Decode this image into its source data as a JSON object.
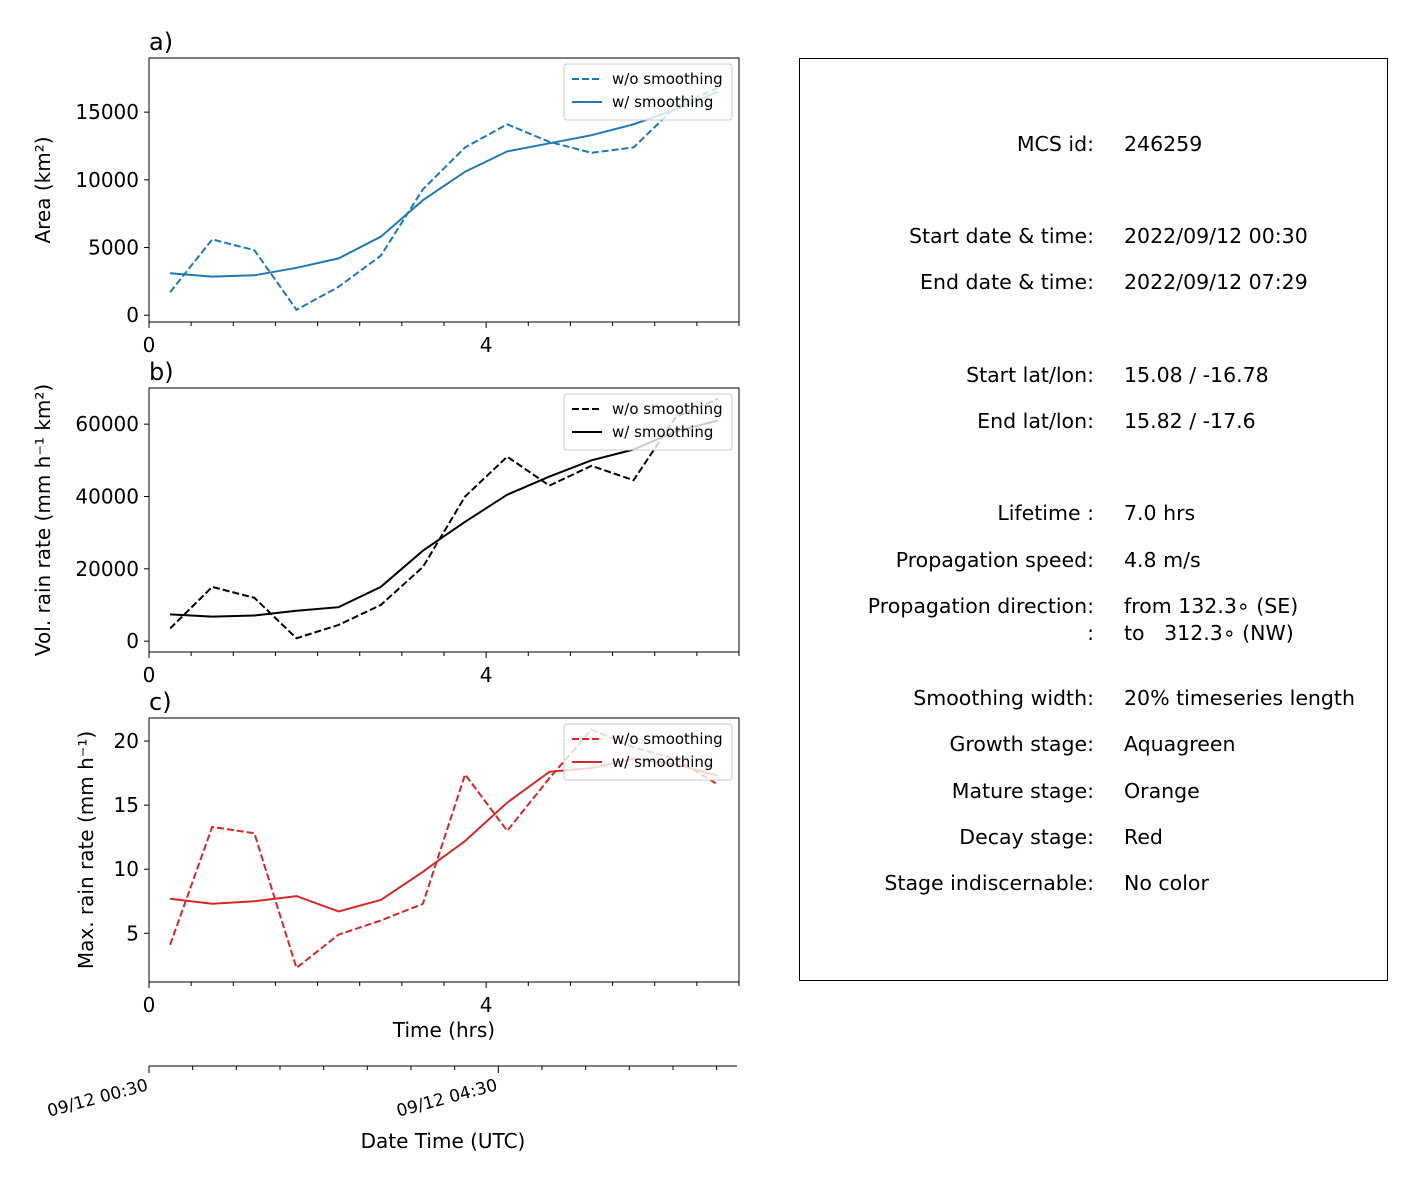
{
  "info": {
    "rows": [
      {
        "label": "MCS id:",
        "value": "246259"
      },
      {
        "label": "Start date & time:",
        "value": "2022/09/12 00:30"
      },
      {
        "label": "End date & time:",
        "value": "2022/09/12 07:29"
      },
      {
        "label": "Start lat/lon:",
        "value": "15.08 / -16.78"
      },
      {
        "label": "End lat/lon:",
        "value": "15.82 / -17.6"
      },
      {
        "label": "Lifetime :",
        "value": "7.0 hrs"
      },
      {
        "label": "Propagation speed:",
        "value": "4.8 m/s"
      },
      {
        "label": "Propagation direction:",
        "value": "from 132.3∘ (SE)"
      },
      {
        "label": ":",
        "value": "to   312.3∘ (NW)"
      },
      {
        "label": "Smoothing width:",
        "value": "20% timeseries length"
      },
      {
        "label": "Growth stage:",
        "value": "Aquagreen"
      },
      {
        "label": "Mature stage:",
        "value": "Orange"
      },
      {
        "label": "Decay stage:",
        "value": "Red"
      },
      {
        "label": "Stage indiscernable:",
        "value": "No color"
      }
    ]
  },
  "chart_data": [
    {
      "type": "line",
      "panel_label": "a)",
      "ylabel": "Area  (km²)",
      "xlabel": "",
      "xlim": [
        0,
        7
      ],
      "ylim": [
        -500,
        19000
      ],
      "xticks": [
        0,
        4
      ],
      "yticks": [
        0,
        5000,
        10000,
        15000
      ],
      "ytick_labels": [
        "0",
        "5000",
        "10000",
        "15000"
      ],
      "color": "#1f77b4",
      "x": [
        0.25,
        0.75,
        1.25,
        1.75,
        2.25,
        2.75,
        3.25,
        3.75,
        4.25,
        4.75,
        5.25,
        5.75,
        6.25,
        6.75
      ],
      "series": [
        {
          "name": "w/o smoothing",
          "style": "dashed",
          "values": [
            1700,
            5600,
            4800,
            400,
            2100,
            4400,
            9300,
            12400,
            14100,
            12800,
            12000,
            12400,
            15400,
            16800
          ]
        },
        {
          "name": "w/ smoothing",
          "style": "solid",
          "values": [
            3100,
            2850,
            2950,
            3500,
            4200,
            5800,
            8500,
            10600,
            12100,
            12700,
            13300,
            14100,
            15200,
            16500
          ]
        }
      ],
      "legend": "top-right"
    },
    {
      "type": "line",
      "panel_label": "b)",
      "ylabel": "Vol. rain rate (mm h⁻¹ km²)",
      "xlabel": "",
      "xlim": [
        0,
        7
      ],
      "ylim": [
        -3000,
        70000
      ],
      "xticks": [
        0,
        4
      ],
      "yticks": [
        0,
        20000,
        40000,
        60000
      ],
      "ytick_labels": [
        "0",
        "20000",
        "40000",
        "60000"
      ],
      "color": "#000000",
      "x": [
        0.25,
        0.75,
        1.25,
        1.75,
        2.25,
        2.75,
        3.25,
        3.75,
        4.25,
        4.75,
        5.25,
        5.75,
        6.25,
        6.75
      ],
      "series": [
        {
          "name": "w/o smoothing",
          "style": "dashed",
          "values": [
            3500,
            15000,
            12000,
            800,
            4500,
            10000,
            20500,
            40000,
            51000,
            43000,
            48500,
            44500,
            62000,
            67000
          ]
        },
        {
          "name": "w/ smoothing",
          "style": "solid",
          "values": [
            7400,
            6800,
            7100,
            8400,
            9400,
            15000,
            25000,
            33000,
            40500,
            45500,
            50000,
            53000,
            58000,
            61000
          ]
        }
      ],
      "legend": "top-right"
    },
    {
      "type": "line",
      "panel_label": "c)",
      "ylabel": "Max. rain rate  (mm h⁻¹)",
      "xlabel": "Time (hrs)",
      "xlim": [
        0,
        7
      ],
      "ylim": [
        1.2,
        21.8
      ],
      "xticks": [
        0,
        4
      ],
      "yticks": [
        5,
        10,
        15,
        20
      ],
      "ytick_labels": [
        "5",
        "10",
        "15",
        "20"
      ],
      "color": "#d62728",
      "x": [
        0.25,
        0.75,
        1.25,
        1.75,
        2.25,
        2.75,
        3.25,
        3.75,
        4.25,
        4.75,
        5.25,
        5.75,
        6.25,
        6.75
      ],
      "series": [
        {
          "name": "w/o smoothing",
          "style": "dashed",
          "values": [
            4.1,
            13.3,
            12.8,
            2.3,
            4.9,
            6.0,
            7.3,
            17.4,
            13.0,
            17.1,
            20.9,
            19.5,
            18.6,
            16.6
          ]
        },
        {
          "name": "w/ smoothing",
          "style": "solid",
          "values": [
            7.7,
            7.3,
            7.5,
            7.9,
            6.7,
            7.6,
            9.8,
            12.2,
            15.2,
            17.6,
            17.9,
            18.6,
            18.2,
            17.3
          ]
        }
      ],
      "legend": "top-right"
    }
  ],
  "date_axis": {
    "xlabel": "Date Time (UTC)",
    "range": [
      "09/12 00:30",
      "09/12 07:14"
    ],
    "tick_labels": [
      "09/12 00:30",
      "09/12 04:30"
    ],
    "minor_ticks": [
      "09/12 01:00",
      "09/12 01:30",
      "09/12 02:00",
      "09/12 02:30",
      "09/12 03:00",
      "09/12 03:30",
      "09/12 04:00",
      "09/12 05:00",
      "09/12 05:30",
      "09/12 06:00",
      "09/12 06:30",
      "09/12 07:00"
    ]
  }
}
